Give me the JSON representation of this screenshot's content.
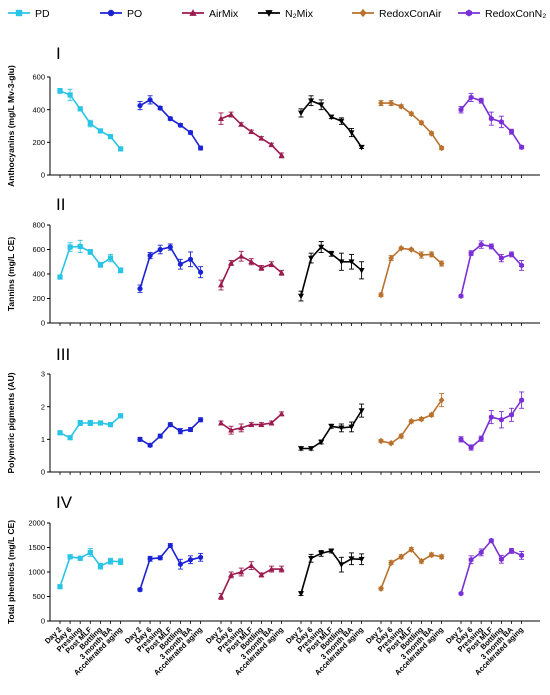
{
  "chart_data": {
    "type": "line",
    "categories": [
      "Day 2",
      "Day 6",
      "Pressing",
      "Post MLF",
      "Bottling",
      "3 month BA",
      "Accelerated aging"
    ],
    "legend": [
      {
        "name": "PD",
        "color": "#29c5e6",
        "marker": "square"
      },
      {
        "name": "PO",
        "color": "#1a22d6",
        "marker": "circle"
      },
      {
        "name": "AirMix",
        "color": "#9b1a4f",
        "marker": "triangle-up"
      },
      {
        "name": "N₂Mix",
        "color": "#000000",
        "marker": "triangle-down"
      },
      {
        "name": "RedoxConAir",
        "color": "#b8722e",
        "marker": "diamond"
      },
      {
        "name": "RedoxConN₂",
        "color": "#7b2fd6",
        "marker": "hexagon"
      }
    ],
    "panels": [
      {
        "label": "I",
        "ylabel": "Anthocyanins (mg/L Mv-3-glu)",
        "ylim": [
          0,
          600
        ],
        "yticks": [
          "0",
          "200",
          "400",
          "600"
        ],
        "series": [
          {
            "values": [
              515,
              490,
              405,
              315,
              270,
              235,
              160
            ],
            "errors": [
              15,
              35,
              10,
              20,
              10,
              10,
              8
            ]
          },
          {
            "values": [
              425,
              460,
              410,
              345,
              305,
              260,
              165
            ],
            "errors": [
              25,
              25,
              10,
              10,
              10,
              10,
              12
            ]
          },
          {
            "values": [
              345,
              370,
              310,
              265,
              225,
              185,
              120
            ],
            "errors": [
              35,
              15,
              10,
              10,
              10,
              10,
              15
            ]
          },
          {
            "values": [
              380,
              455,
              430,
              355,
              330,
              260,
              170
            ],
            "errors": [
              25,
              30,
              30,
              10,
              20,
              25,
              8
            ]
          },
          {
            "values": [
              440,
              440,
              420,
              375,
              320,
              255,
              165
            ],
            "errors": [
              15,
              15,
              10,
              10,
              10,
              10,
              10
            ]
          },
          {
            "values": [
              400,
              475,
              455,
              345,
              325,
              265,
              170
            ],
            "errors": [
              20,
              25,
              15,
              40,
              35,
              15,
              10
            ]
          }
        ]
      },
      {
        "label": "II",
        "ylabel": "Tannins (mg/L CE)",
        "ylim": [
          0,
          800
        ],
        "yticks": [
          "0",
          "200",
          "400",
          "600",
          "800"
        ],
        "series": [
          {
            "values": [
              375,
              620,
              625,
              580,
              475,
              530,
              430
            ],
            "errors": [
              15,
              35,
              50,
              20,
              20,
              30,
              20
            ]
          },
          {
            "values": [
              280,
              550,
              600,
              620,
              480,
              520,
              415
            ],
            "errors": [
              30,
              25,
              35,
              25,
              40,
              60,
              45
            ]
          },
          {
            "values": [
              310,
              490,
              545,
              500,
              450,
              480,
              410
            ],
            "errors": [
              40,
              20,
              40,
              25,
              20,
              20,
              20
            ]
          },
          {
            "values": [
              220,
              530,
              620,
              565,
              500,
              500,
              430
            ],
            "errors": [
              40,
              40,
              45,
              20,
              70,
              60,
              70
            ]
          },
          {
            "values": [
              230,
              530,
              610,
              600,
              555,
              560,
              485
            ],
            "errors": [
              15,
              20,
              10,
              10,
              25,
              20,
              20
            ]
          },
          {
            "values": [
              220,
              570,
              640,
              625,
              530,
              560,
              470
            ],
            "errors": [
              10,
              20,
              30,
              20,
              30,
              20,
              40
            ]
          }
        ]
      },
      {
        "label": "III",
        "ylabel": "Polymeric pigments (AU)",
        "ylim": [
          0,
          3
        ],
        "yticks": [
          "0",
          "1",
          "2",
          "3"
        ],
        "series": [
          {
            "values": [
              1.2,
              1.05,
              1.5,
              1.5,
              1.5,
              1.45,
              1.72
            ],
            "errors": [
              0.06,
              0.05,
              0.08,
              0.08,
              0.06,
              0.06,
              0.06
            ]
          },
          {
            "values": [
              1.0,
              0.82,
              1.1,
              1.45,
              1.25,
              1.3,
              1.6
            ],
            "errors": [
              0.06,
              0.05,
              0.06,
              0.06,
              0.08,
              0.06,
              0.06
            ]
          },
          {
            "values": [
              1.5,
              1.28,
              1.35,
              1.45,
              1.45,
              1.5,
              1.78
            ],
            "errors": [
              0.06,
              0.12,
              0.12,
              0.06,
              0.06,
              0.06,
              0.06
            ]
          },
          {
            "values": [
              0.72,
              0.72,
              0.92,
              1.4,
              1.35,
              1.38,
              1.88
            ],
            "errors": [
              0.05,
              0.05,
              0.06,
              0.06,
              0.12,
              0.15,
              0.2
            ]
          },
          {
            "values": [
              0.95,
              0.88,
              1.1,
              1.55,
              1.62,
              1.75,
              2.2
            ],
            "errors": [
              0.04,
              0.04,
              0.06,
              0.05,
              0.05,
              0.05,
              0.2
            ]
          },
          {
            "values": [
              1.0,
              0.75,
              1.02,
              1.68,
              1.6,
              1.75,
              2.2
            ],
            "errors": [
              0.08,
              0.08,
              0.08,
              0.2,
              0.25,
              0.2,
              0.25
            ]
          }
        ]
      },
      {
        "label": "IV",
        "ylabel": "Total phenolics (mg/L CE)",
        "ylim": [
          0,
          2000
        ],
        "yticks": [
          "0",
          "500",
          "1000",
          "1500",
          "2000"
        ],
        "series": [
          {
            "values": [
              700,
              1310,
              1280,
              1400,
              1120,
              1220,
              1210
            ],
            "errors": [
              30,
              40,
              40,
              80,
              60,
              60,
              60
            ]
          },
          {
            "values": [
              640,
              1270,
              1290,
              1540,
              1160,
              1250,
              1300
            ],
            "errors": [
              30,
              50,
              40,
              40,
              100,
              80,
              80
            ]
          },
          {
            "values": [
              500,
              940,
              1000,
              1130,
              940,
              1060,
              1060
            ],
            "errors": [
              60,
              60,
              80,
              80,
              40,
              60,
              60
            ]
          },
          {
            "values": [
              560,
              1280,
              1380,
              1430,
              1150,
              1270,
              1260
            ],
            "errors": [
              40,
              80,
              60,
              40,
              150,
              120,
              110
            ]
          },
          {
            "values": [
              660,
              1190,
              1310,
              1460,
              1220,
              1350,
              1310
            ],
            "errors": [
              30,
              40,
              40,
              40,
              40,
              40,
              40
            ]
          },
          {
            "values": [
              560,
              1250,
              1400,
              1640,
              1260,
              1430,
              1340
            ],
            "errors": [
              20,
              80,
              70,
              30,
              80,
              50,
              80
            ]
          }
        ]
      }
    ]
  }
}
